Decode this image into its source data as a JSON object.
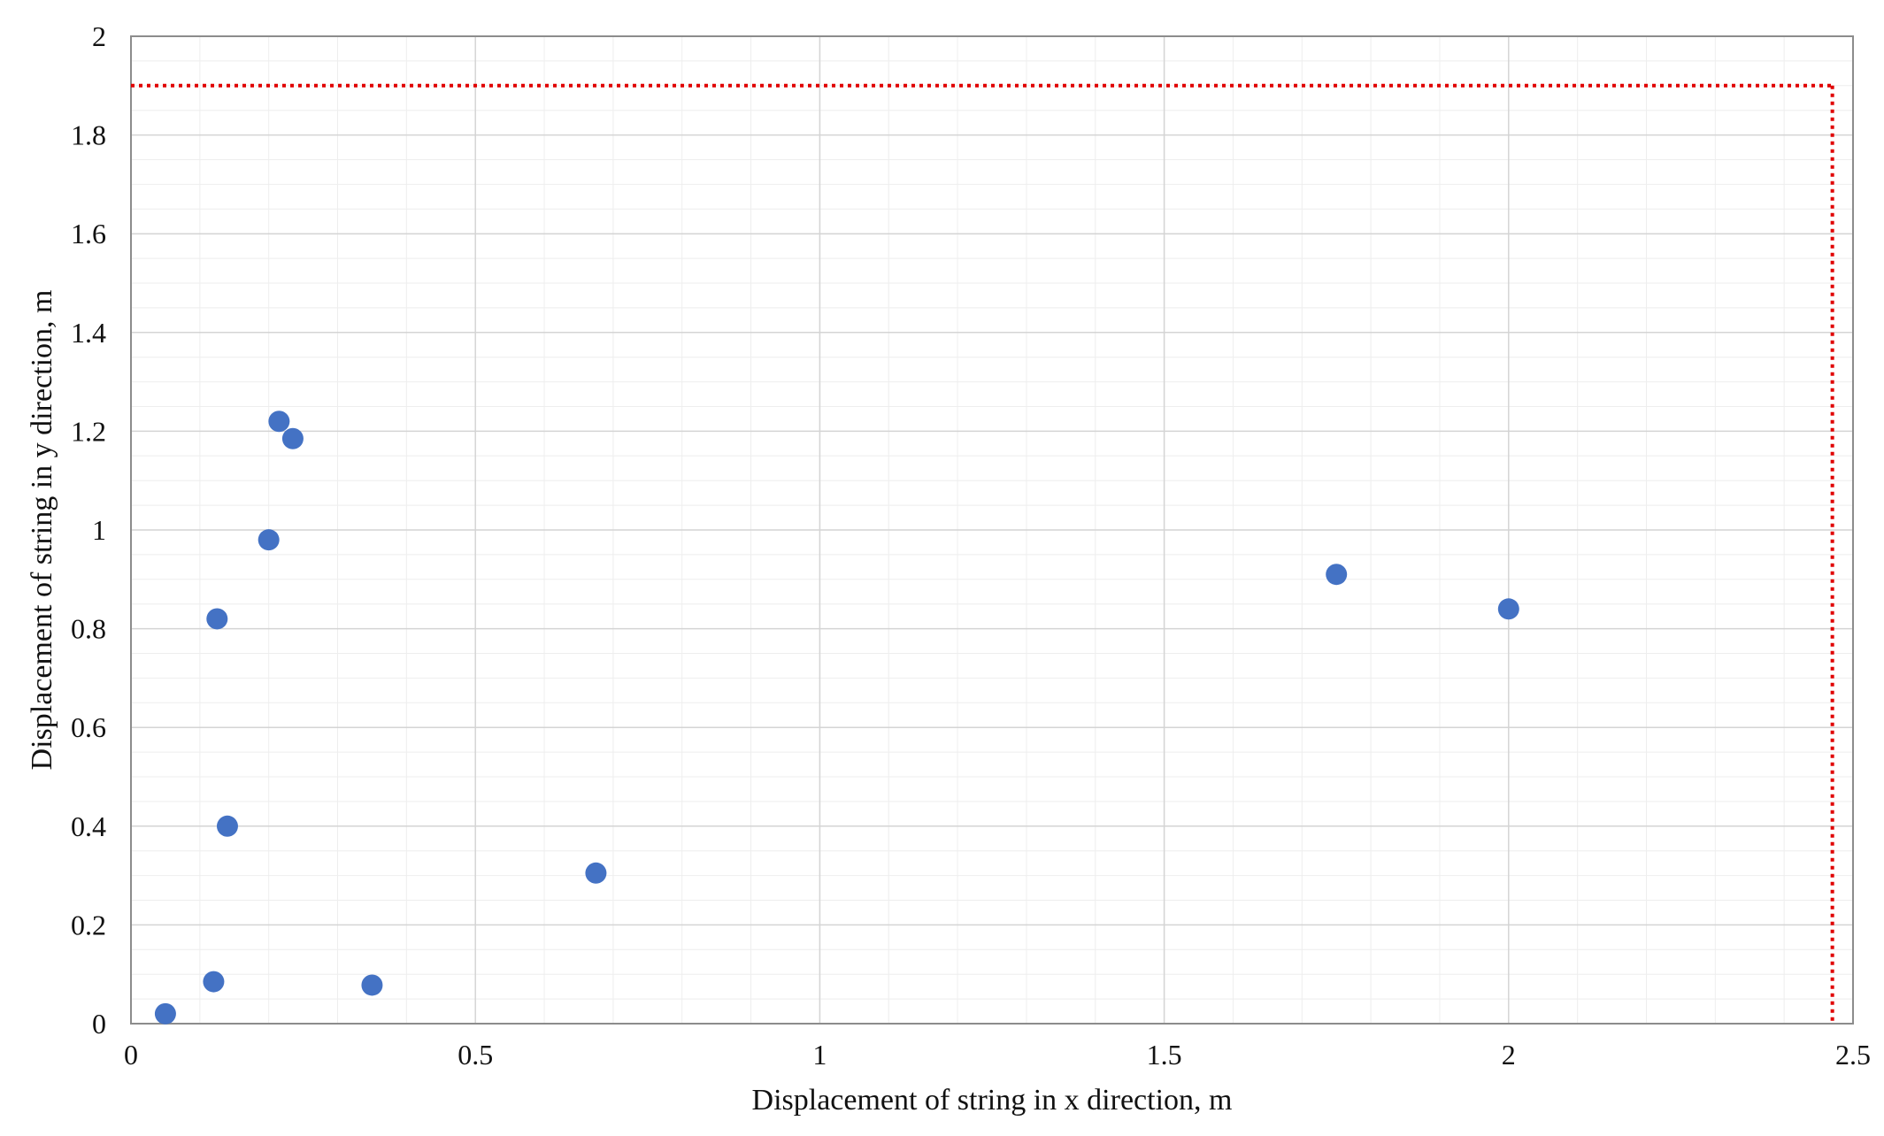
{
  "chart_data": {
    "type": "scatter",
    "title": "",
    "xlabel": "Displacement of string in x direction, m",
    "ylabel": "Displacement of string in y direction, m",
    "xlim": [
      0,
      2.5
    ],
    "ylim": [
      0,
      2
    ],
    "x_ticks": [
      0,
      0.5,
      1,
      1.5,
      2,
      2.5
    ],
    "y_ticks": [
      0,
      0.2,
      0.4,
      0.6,
      0.8,
      1,
      1.2,
      1.4,
      1.6,
      1.8,
      2
    ],
    "x_tick_labels": [
      "0",
      "0.5",
      "1",
      "1.5",
      "2",
      "2.5"
    ],
    "y_tick_labels": [
      "0",
      "0.2",
      "0.4",
      "0.6",
      "0.8",
      "1",
      "1.2",
      "1.4",
      "1.6",
      "1.8",
      "2"
    ],
    "grid": true,
    "minor_grid": true,
    "legend": "none",
    "series": [
      {
        "color": "#4472C4",
        "marker": "circle",
        "points": [
          {
            "x": 0.05,
            "y": 0.02
          },
          {
            "x": 0.12,
            "y": 0.085
          },
          {
            "x": 0.14,
            "y": 0.4
          },
          {
            "x": 0.125,
            "y": 0.82
          },
          {
            "x": 0.2,
            "y": 0.98
          },
          {
            "x": 0.215,
            "y": 1.22
          },
          {
            "x": 0.235,
            "y": 1.185
          },
          {
            "x": 0.35,
            "y": 0.078
          },
          {
            "x": 0.675,
            "y": 0.305
          },
          {
            "x": 1.75,
            "y": 0.91
          },
          {
            "x": 2.0,
            "y": 0.84
          }
        ]
      }
    ],
    "reference_boundary": {
      "style": "dotted",
      "color": "#E00000",
      "x": 2.47,
      "y": 1.9
    }
  }
}
